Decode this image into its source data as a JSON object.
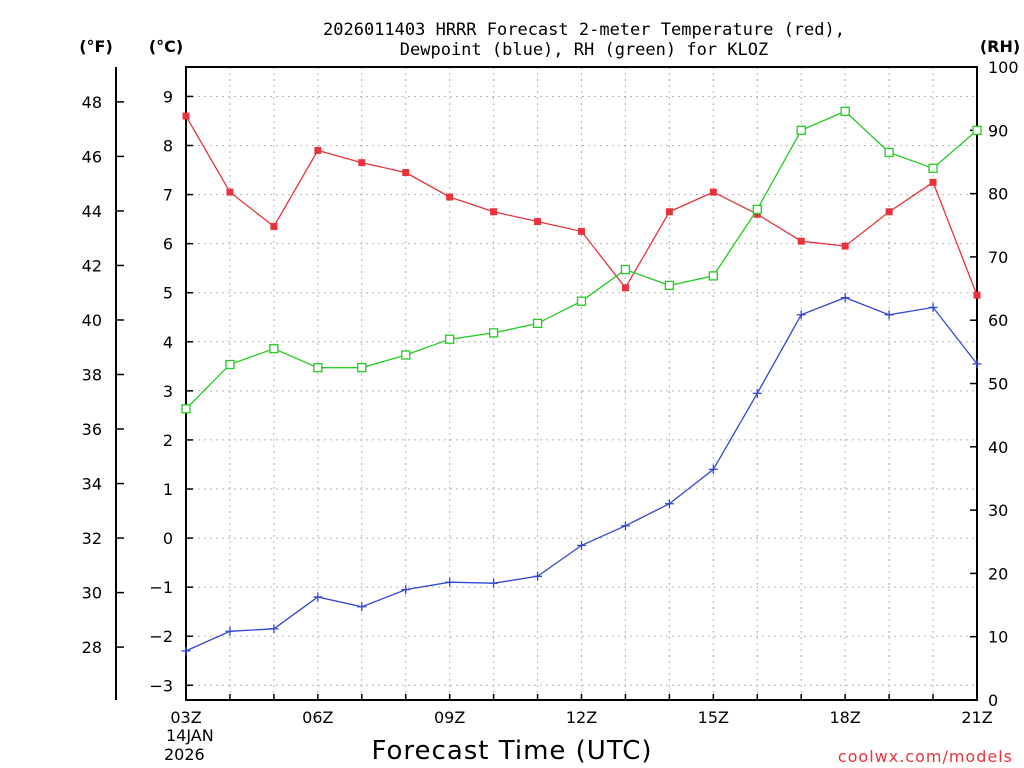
{
  "chart_data": {
    "type": "line",
    "title_line1": "2026011403 HRRR Forecast 2-meter Temperature (red),",
    "title_line2": "Dewpoint (blue), RH (green) for KLOZ",
    "xlabel": "Forecast Time (UTC)",
    "credit": "coolwx.com/models",
    "date_label_line1": "14JAN",
    "date_label_line2": "2026",
    "units": {
      "fahrenheit": "(°F)",
      "celsius": "(°C)",
      "rh": "(RH)"
    },
    "x_hours": [
      3,
      4,
      5,
      6,
      7,
      8,
      9,
      10,
      11,
      12,
      13,
      14,
      15,
      16,
      17,
      18,
      19,
      20,
      21
    ],
    "x_tick_labels": [
      {
        "hour": 3,
        "label": "03Z"
      },
      {
        "hour": 6,
        "label": "06Z"
      },
      {
        "hour": 9,
        "label": "09Z"
      },
      {
        "hour": 12,
        "label": "12Z"
      },
      {
        "hour": 15,
        "label": "15Z"
      },
      {
        "hour": 18,
        "label": "18Z"
      },
      {
        "hour": 21,
        "label": "21Z"
      }
    ],
    "celsius_axis": {
      "range": [
        -3.3,
        9.6
      ],
      "ticks": [
        -3,
        -2,
        -1,
        0,
        1,
        2,
        3,
        4,
        5,
        6,
        7,
        8,
        9
      ]
    },
    "fahrenheit_axis": {
      "ticks": [
        28,
        30,
        32,
        34,
        36,
        38,
        40,
        42,
        44,
        46,
        48
      ]
    },
    "rh_axis": {
      "range": [
        0,
        100
      ],
      "ticks": [
        0,
        10,
        20,
        30,
        40,
        50,
        60,
        70,
        80,
        90,
        100
      ]
    },
    "series": [
      {
        "name": "Temperature",
        "units": "C",
        "color": "#e8333d",
        "marker": "filled-square",
        "values": [
          8.6,
          7.05,
          6.35,
          7.9,
          7.65,
          7.45,
          6.95,
          6.65,
          6.45,
          6.25,
          5.1,
          6.65,
          7.05,
          6.6,
          6.05,
          5.95,
          6.65,
          7.25,
          4.95
        ]
      },
      {
        "name": "Dewpoint",
        "units": "C",
        "color": "#3347d4",
        "marker": "plus",
        "values": [
          -2.3,
          -1.9,
          -1.85,
          -1.2,
          -1.4,
          -1.05,
          -0.9,
          -0.92,
          -0.78,
          -0.15,
          0.25,
          0.7,
          1.4,
          2.95,
          4.55,
          4.9,
          4.55,
          4.7,
          3.55
        ]
      },
      {
        "name": "RH",
        "units": "%",
        "color": "#22cc22",
        "marker": "open-square",
        "values": [
          46,
          53,
          55.5,
          52.5,
          52.5,
          54.5,
          57,
          58,
          59.5,
          63,
          68,
          65.5,
          67,
          77.5,
          90,
          93,
          86.5,
          84,
          90
        ]
      }
    ]
  }
}
